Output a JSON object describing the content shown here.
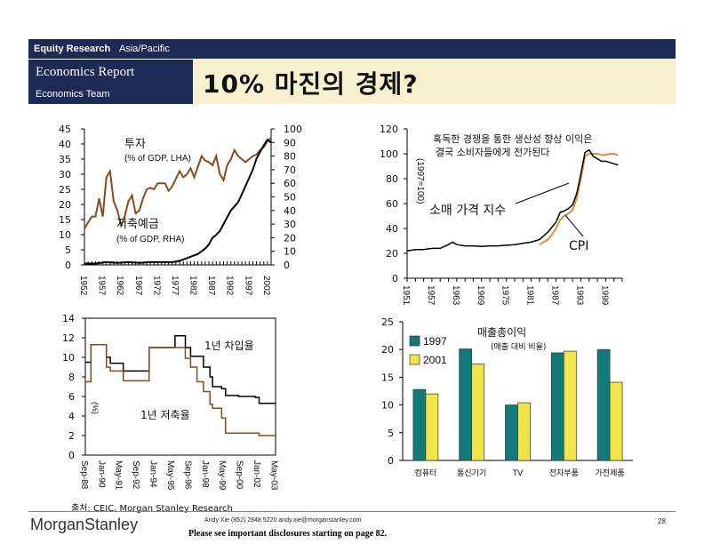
{
  "header": {
    "section": "Equity Research",
    "region": "Asia/Pacific",
    "report": "Economics Report",
    "team": "Economics Team",
    "title": "10% 마진의 경제?"
  },
  "footer": {
    "source": "출처: CEIC, Morgan Stanley Research",
    "logo": "MorganStanley",
    "contact": "Andy Xie (852) 2848 5220 andy.xie@morganstanley.com",
    "disclosure": "Please see important disclosures starting on page 82.",
    "page": "28"
  },
  "colors": {
    "navy": "#1c2a56",
    "band": "#f7f1cf",
    "brown": "#8b4a1c",
    "orange": "#e28a3c",
    "teal": "#137a7a",
    "yellow": "#f1e54a"
  },
  "chart_data": [
    {
      "type": "line",
      "title": "",
      "xlabel": "",
      "ylabel": "",
      "x_ticks": [
        "1952",
        "1957",
        "1962",
        "1967",
        "1972",
        "1977",
        "1982",
        "1987",
        "1992",
        "1997",
        "2002"
      ],
      "xlim": [
        1952,
        2003
      ],
      "ylim_left": [
        0,
        45
      ],
      "ylim_right": [
        0,
        100
      ],
      "y_ticks_left": [
        "0",
        "5",
        "10",
        "15",
        "20",
        "25",
        "30",
        "35",
        "40",
        "45"
      ],
      "y_ticks_right": [
        "0",
        "10",
        "20",
        "30",
        "40",
        "50",
        "60",
        "70",
        "80",
        "90",
        "100"
      ],
      "series": [
        {
          "name": "투자",
          "label_sub": "(% of GDP, LHA)",
          "axis": "left",
          "x": [
            1952,
            1953,
            1954,
            1955,
            1956,
            1957,
            1958,
            1959,
            1960,
            1961,
            1962,
            1963,
            1964,
            1965,
            1966,
            1967,
            1968,
            1969,
            1970,
            1971,
            1972,
            1973,
            1974,
            1975,
            1976,
            1977,
            1978,
            1979,
            1980,
            1981,
            1982,
            1983,
            1984,
            1985,
            1986,
            1987,
            1988,
            1989,
            1990,
            1991,
            1992,
            1993,
            1994,
            1995,
            1996,
            1997,
            1998,
            1999,
            2000,
            2001,
            2002,
            2003
          ],
          "values": [
            12,
            14,
            16,
            16,
            22,
            16,
            29,
            31,
            21,
            18,
            13,
            16,
            21,
            23,
            17,
            18,
            22,
            25,
            25.5,
            25,
            27,
            27,
            27,
            24.5,
            26,
            28.5,
            31,
            29,
            30,
            32,
            29,
            32.5,
            36,
            34.5,
            34,
            33,
            36,
            30,
            28,
            33,
            35,
            38,
            36,
            35,
            34,
            35,
            36,
            36.5,
            38,
            39,
            41,
            42
          ]
        },
        {
          "name": "저축예금",
          "label_sub": "(% of GDP, RHA)",
          "axis": "right",
          "x": [
            1952,
            1955,
            1958,
            1961,
            1964,
            1967,
            1970,
            1973,
            1976,
            1978,
            1979,
            1980,
            1981,
            1982,
            1983,
            1984,
            1985,
            1986,
            1987,
            1988,
            1989,
            1990,
            1991,
            1992,
            1993,
            1994,
            1995,
            1996,
            1997,
            1998,
            1999,
            2000,
            2001,
            2002,
            2003
          ],
          "values": [
            1,
            1,
            2,
            1.5,
            2,
            1.5,
            2,
            2,
            2,
            3,
            4,
            5,
            6,
            7,
            8,
            10,
            12,
            15,
            20,
            22,
            25,
            30,
            35,
            40,
            43,
            46,
            52,
            58,
            64,
            70,
            78,
            83,
            88,
            92,
            90
          ]
        }
      ]
    },
    {
      "type": "line",
      "title": "",
      "xlabel": "",
      "ylabel": "(1997=100)",
      "x_ticks": [
        "1951",
        "1957",
        "1963",
        "1969",
        "1975",
        "1981",
        "1987",
        "1993",
        "1999"
      ],
      "xlim": [
        1951,
        2003
      ],
      "ylim": [
        0,
        120
      ],
      "y_ticks": [
        "0",
        "20",
        "40",
        "60",
        "80",
        "100",
        "120"
      ],
      "annotations": [
        "혹독한 경쟁을 통한 생산성 향상 이익은",
        "결국 소비자들에게 전가된다",
        "소매 가격 지수",
        "CPI"
      ],
      "series": [
        {
          "name": "소매 가격 지수",
          "x": [
            1951,
            1953,
            1955,
            1957,
            1959,
            1961,
            1962,
            1963,
            1965,
            1967,
            1969,
            1971,
            1973,
            1975,
            1977,
            1979,
            1981,
            1983,
            1985,
            1986,
            1987,
            1988,
            1989,
            1990,
            1991,
            1992,
            1993,
            1994,
            1995,
            1996,
            1997,
            1998,
            1999,
            2000,
            2001,
            2002
          ],
          "values": [
            22,
            23,
            23,
            24,
            24,
            27,
            29,
            27,
            26,
            26,
            25.5,
            26,
            26,
            26.5,
            27,
            28,
            29,
            31,
            37,
            41,
            45,
            53,
            54,
            56,
            59,
            68,
            84,
            101,
            103,
            98,
            96,
            94,
            94,
            93,
            92,
            91
          ]
        },
        {
          "name": "CPI",
          "x": [
            1983,
            1985,
            1986,
            1987,
            1988,
            1989,
            1990,
            1991,
            1992,
            1993,
            1994,
            1995,
            1996,
            1997,
            1998,
            1999,
            2000,
            2001,
            2002
          ],
          "values": [
            27,
            31,
            35,
            40,
            47,
            50,
            52,
            55,
            64,
            80,
            98,
            100,
            100,
            100,
            99,
            99,
            100,
            100,
            99
          ]
        }
      ]
    },
    {
      "type": "line",
      "title": "",
      "xlabel": "",
      "ylabel": "(%)",
      "x_ticks": [
        "Sep-88",
        "Jan-90",
        "May-91",
        "Sep-92",
        "Jan-94",
        "May-95",
        "Sep-96",
        "Jan-98",
        "May-99",
        "Sep-00",
        "Jan-02",
        "May-03"
      ],
      "xlim": [
        1988.67,
        2003.37
      ],
      "ylim": [
        0,
        14
      ],
      "y_ticks": [
        "0",
        "2",
        "4",
        "6",
        "8",
        "10",
        "12",
        "14"
      ],
      "series": [
        {
          "name": "1년 차입율",
          "x": [
            1988.67,
            1989.1,
            1989.7,
            1990.3,
            1990.6,
            1991.3,
            1991.6,
            1993.4,
            1993.6,
            1995.3,
            1995.6,
            1996.2,
            1996.4,
            1996.8,
            1997.3,
            1997.8,
            1998.3,
            1998.5,
            1999.2,
            1999.5,
            2000.5,
            2001.8,
            2002.1,
            2003.37
          ],
          "values": [
            9.5,
            11.3,
            11.3,
            10,
            9.4,
            9.4,
            8.6,
            8.6,
            11.0,
            11.0,
            12.2,
            12.2,
            11.0,
            10.1,
            10.1,
            9.0,
            8.0,
            7.0,
            6.8,
            6.1,
            6.0,
            5.9,
            5.3,
            5.3
          ]
        },
        {
          "name": "1년 저축율",
          "x": [
            1988.67,
            1989.1,
            1989.7,
            1990.3,
            1990.6,
            1991.3,
            1991.6,
            1993.4,
            1993.6,
            1995.3,
            1995.6,
            1996.2,
            1996.4,
            1996.8,
            1997.3,
            1997.8,
            1998.3,
            1998.5,
            1999.2,
            1999.5,
            2000.5,
            2001.8,
            2002.1,
            2003.37
          ],
          "values": [
            7.5,
            11.3,
            11.3,
            9,
            8.6,
            8.6,
            7.6,
            7.6,
            11.0,
            11.0,
            11.0,
            11.0,
            9.9,
            9.0,
            7.5,
            6.5,
            5.2,
            4.8,
            3.8,
            2.25,
            2.25,
            2.25,
            2.0,
            2.0
          ]
        }
      ]
    },
    {
      "type": "bar",
      "title": "매출총이익",
      "subtitle": "(매출 대비 비율)",
      "xlabel": "",
      "ylabel": "",
      "categories": [
        "컴퓨터",
        "통신기기",
        "TV",
        "전자부품",
        "가전제품"
      ],
      "ylim": [
        0,
        25
      ],
      "y_ticks": [
        "0",
        "5",
        "10",
        "15",
        "20",
        "25"
      ],
      "legend": "top-left",
      "series": [
        {
          "name": "1997",
          "values": [
            12.8,
            20.1,
            10.0,
            19.4,
            20.0
          ]
        },
        {
          "name": "2001",
          "values": [
            12.0,
            17.4,
            10.4,
            19.7,
            14.1
          ]
        }
      ]
    }
  ]
}
